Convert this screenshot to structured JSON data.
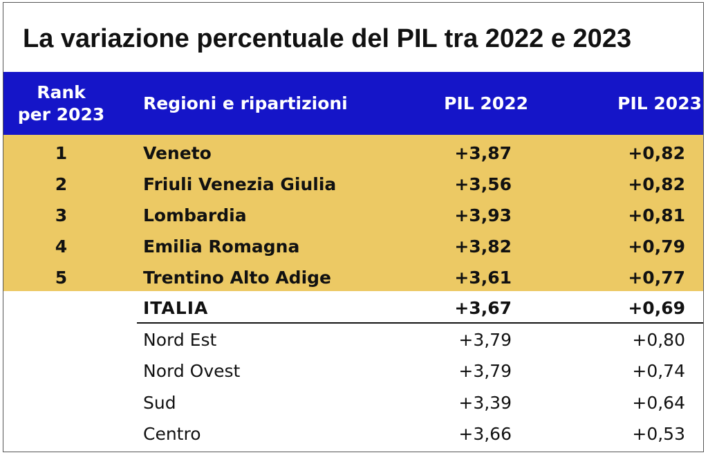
{
  "title": "La variazione percentuale del PIL tra 2022 e 2023",
  "colors": {
    "header_bg": "#1515c8",
    "highlight_bg": "#ecc964",
    "header_text": "#ffffff"
  },
  "header": {
    "rank_line1": "Rank",
    "rank_line2": "per 2023",
    "region": "Regioni e ripartizioni",
    "pil2022": "PIL 2022",
    "pil2023": "PIL 2023"
  },
  "ranked_rows": [
    {
      "rank": "1",
      "region": "Veneto",
      "pil2022": "+3,87",
      "pil2023": "+0,82"
    },
    {
      "rank": "2",
      "region": "Friuli Venezia Giulia",
      "pil2022": "+3,56",
      "pil2023": "+0,82"
    },
    {
      "rank": "3",
      "region": "Lombardia",
      "pil2022": "+3,93",
      "pil2023": "+0,81"
    },
    {
      "rank": "4",
      "region": "Emilia Romagna",
      "pil2022": "+3,82",
      "pil2023": "+0,79"
    },
    {
      "rank": "5",
      "region": "Trentino Alto Adige",
      "pil2022": "+3,61",
      "pil2023": "+0,77"
    }
  ],
  "italia_row": {
    "region": "ITALIA",
    "pil2022": "+3,67",
    "pil2023": "+0,69"
  },
  "area_rows": [
    {
      "region": "Nord Est",
      "pil2022": "+3,79",
      "pil2023": "+0,80"
    },
    {
      "region": "Nord Ovest",
      "pil2022": "+3,79",
      "pil2023": "+0,74"
    },
    {
      "region": "Sud",
      "pil2022": "+3,39",
      "pil2023": "+0,64"
    },
    {
      "region": "Centro",
      "pil2022": "+3,66",
      "pil2023": "+0,53"
    }
  ]
}
